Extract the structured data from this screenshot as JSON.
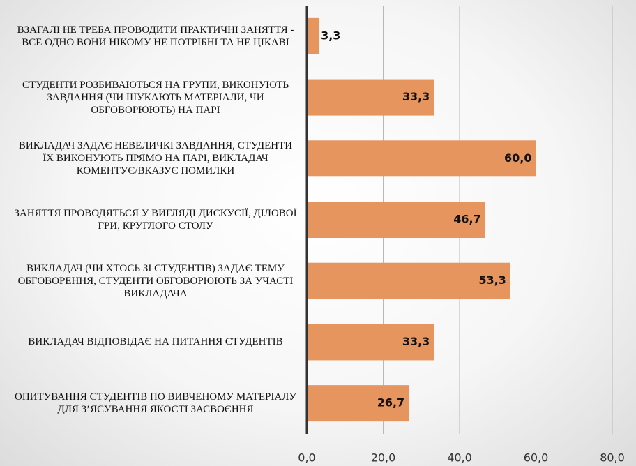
{
  "chart_data": {
    "type": "bar",
    "orientation": "horizontal",
    "categories": [
      "ВЗАГАЛІ НЕ ТРЕБА ПРОВОДИТИ ПРАКТИЧНІ ЗАНЯТТЯ - ВСЕ ОДНО ВОНИ НІКОМУ НЕ ПОТРІБНІ ТА НЕ ЦІКАВІ",
      "СТУДЕНТИ РОЗБИВАЮТЬСЯ НА ГРУПИ, ВИКОНУЮТЬ ЗАВДАННЯ (ЧИ ШУКАЮТЬ МАТЕРІАЛИ, ЧИ ОБГОВОРЮЮТЬ) НА ПАРІ",
      "ВИКЛАДАЧ ЗАДАЄ НЕВЕЛИЧКІ ЗАВДАННЯ, СТУДЕНТИ ЇХ ВИКОНУЮТЬ ПРЯМО НА ПАРІ, ВИКЛАДАЧ КОМЕНТУЄ/ВКАЗУЄ ПОМИЛКИ",
      "ЗАНЯТТЯ ПРОВОДЯТЬСЯ У ВИГЛЯДІ ДИСКУСІЇ, ДІЛОВОЇ ГРИ, КРУГЛОГО СТОЛУ",
      "ВИКЛАДАЧ (ЧИ ХТОСЬ ЗІ СТУДЕНТІВ) ЗАДАЄ ТЕМУ ОБГОВОРЕННЯ, СТУДЕНТИ ОБГОВОРЮЮТЬ ЗА УЧАСТІ ВИКЛАДАЧА",
      "ВИКЛАДАЧ ВІДПОВІДАЄ НА ПИТАННЯ СТУДЕНТІВ",
      "ОПИТУВАННЯ СТУДЕНТІВ ПО ВИВЧЕНОМУ МАТЕРІАЛУ ДЛЯ З’ЯСУВАННЯ ЯКОСТІ ЗАСВОЄННЯ"
    ],
    "values": [
      3.3,
      33.3,
      60.0,
      46.7,
      53.3,
      33.3,
      26.7
    ],
    "value_labels": [
      "3,3",
      "33,3",
      "60,0",
      "46,7",
      "53,3",
      "33,3",
      "26,7"
    ],
    "color": "#e6955f",
    "xlim": [
      0,
      80
    ],
    "xticks": [
      {
        "value": 0,
        "label": "0,0"
      },
      {
        "value": 20,
        "label": "20,0"
      },
      {
        "value": 40,
        "label": "40,0"
      },
      {
        "value": 60,
        "label": "60,0"
      },
      {
        "value": 80,
        "label": "80,0"
      }
    ],
    "grid": true
  }
}
